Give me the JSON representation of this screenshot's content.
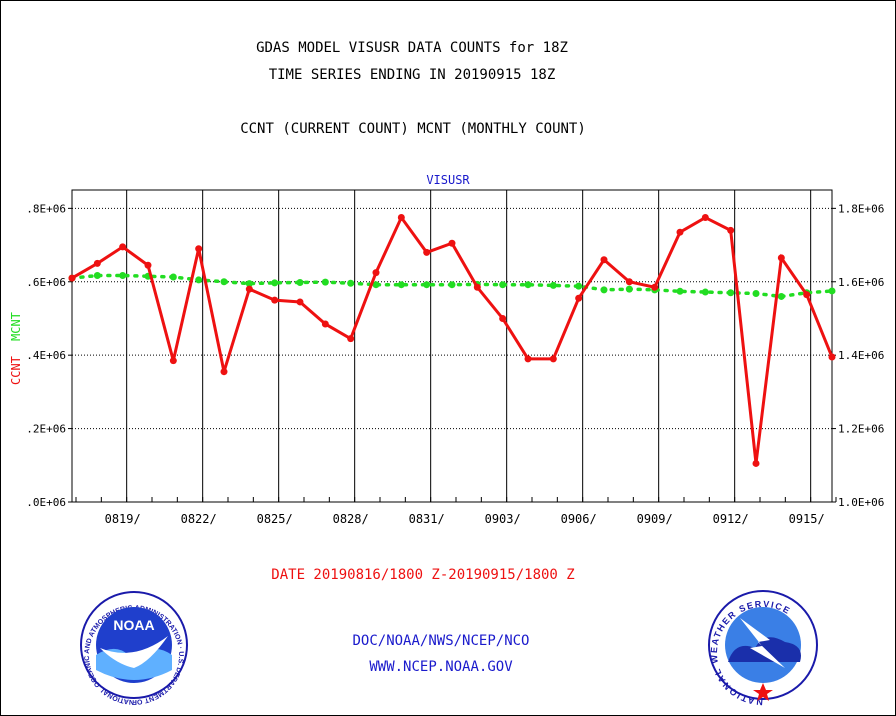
{
  "header": {
    "title_line1": "GDAS MODEL VISUSR DATA COUNTS for 18Z",
    "title_line2": "TIME SERIES ENDING IN 20190915 18Z",
    "subtitle": "CCNT (CURRENT COUNT) MCNT (MONTHLY COUNT)"
  },
  "footer": {
    "date_range": "DATE 20190816/1800 Z-20190915/1800 Z",
    "org_line": "DOC/NOAA/NWS/NCEP/NCO",
    "url_line": "WWW.NCEP.NOAA.GOV"
  },
  "logos": {
    "noaa_text": "NOAA",
    "noaa_ring": "NATIONAL OCEANIC AND ATMOSPHERIC ADMINISTRATION · U.S. DEPARTMENT OF COMMERCE ·",
    "nws_ring": "NATIONAL WEATHER SERVICE"
  },
  "colors": {
    "ccnt": "#ee1111",
    "mcnt": "#22dd22",
    "title": "#000000",
    "blue_text": "#1a1acc"
  },
  "chart_data": {
    "type": "line",
    "title": "VISUSR",
    "ylabel_left_1": "CCNT",
    "ylabel_left_2": "MCNT",
    "left_ticks": [
      ".0E+06",
      ".2E+06",
      ".4E+06",
      ".6E+06",
      ".8E+06"
    ],
    "right_ticks": [
      "1.0E+06",
      "1.2E+06",
      "1.4E+06",
      "1.6E+06",
      "1.8E+06"
    ],
    "ylim": [
      1000000,
      1850000
    ],
    "grid": true,
    "xlim_days": [
      0,
      30
    ],
    "x_tick_labels": [
      "0819/",
      "0822/",
      "0825/",
      "0828/",
      "0831/",
      "0903/",
      "0906/",
      "0909/",
      "0912/",
      "0915/"
    ],
    "x_tick_days": [
      2,
      5,
      8,
      11,
      14,
      17,
      20,
      23,
      26,
      29
    ],
    "series": [
      {
        "name": "CCNT",
        "values": [
          1610000,
          1650000,
          1695000,
          1645000,
          1385000,
          1690000,
          1355000,
          1580000,
          1550000,
          1545000,
          1485000,
          1445000,
          1625000,
          1775000,
          1680000,
          1705000,
          1585000,
          1500000,
          1390000,
          1390000,
          1555000,
          1660000,
          1600000,
          1585000,
          1735000,
          1775000,
          1740000,
          1105000,
          1665000,
          1565000,
          1395000
        ]
      },
      {
        "name": "MCNT",
        "values": [
          1610000,
          1617000,
          1617000,
          1615000,
          1613000,
          1605000,
          1600000,
          1595000,
          1597000,
          1598000,
          1599000,
          1596000,
          1592000,
          1592000,
          1592000,
          1592000,
          1593000,
          1592000,
          1592000,
          1590000,
          1588000,
          1578000,
          1580000,
          1578000,
          1574000,
          1572000,
          1570000,
          1568000,
          1560000,
          1570000,
          1575000
        ]
      }
    ]
  }
}
